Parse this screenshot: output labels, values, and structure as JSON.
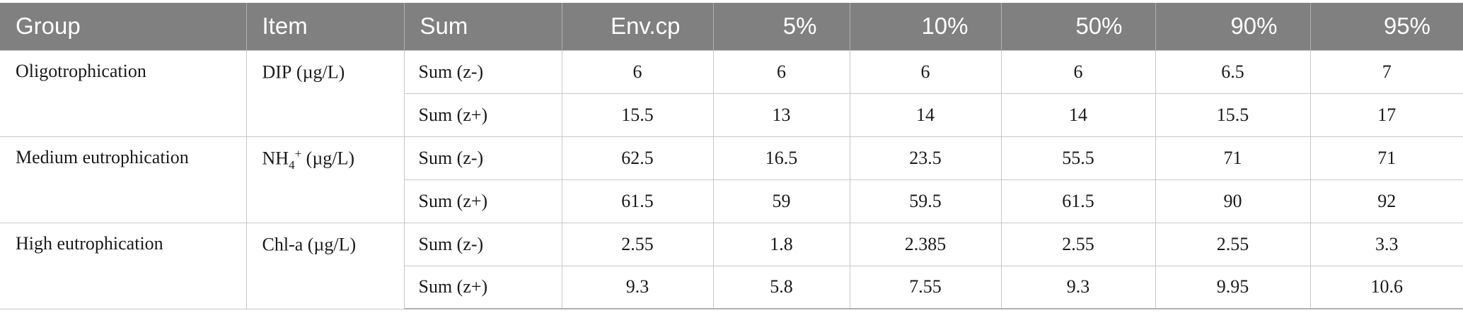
{
  "columns": [
    "Group",
    "Item",
    "Sum",
    "Env.cp",
    "5%",
    "10%",
    "50%",
    "90%",
    "95%"
  ],
  "groups": [
    {
      "group": "Oligotrophication",
      "item": {
        "base": "DIP",
        "sub": "",
        "sup": "",
        "unit": " (µg/L)"
      },
      "rows": [
        {
          "sum": "Sum (z-)",
          "values": [
            "6",
            "6",
            "6",
            "6",
            "6.5",
            "7"
          ]
        },
        {
          "sum": "Sum (z+)",
          "values": [
            "15.5",
            "13",
            "14",
            "14",
            "15.5",
            "17"
          ]
        }
      ]
    },
    {
      "group": "Medium eutrophication",
      "item": {
        "base": "NH",
        "sub": "4",
        "sup": "+",
        "unit": " (µg/L)"
      },
      "rows": [
        {
          "sum": "Sum (z-)",
          "values": [
            "62.5",
            "16.5",
            "23.5",
            "55.5",
            "71",
            "71"
          ]
        },
        {
          "sum": "Sum (z+)",
          "values": [
            "61.5",
            "59",
            "59.5",
            "61.5",
            "90",
            "92"
          ]
        }
      ]
    },
    {
      "group": "High eutrophication",
      "item": {
        "base": "Chl-a",
        "sub": "",
        "sup": "",
        "unit": " (µg/L)"
      },
      "rows": [
        {
          "sum": "Sum (z-)",
          "values": [
            "2.55",
            "1.8",
            "2.385",
            "2.55",
            "2.55",
            "3.3"
          ]
        },
        {
          "sum": "Sum (z+)",
          "values": [
            "9.3",
            "5.8",
            "7.55",
            "9.3",
            "9.95",
            "10.6"
          ]
        }
      ]
    }
  ]
}
